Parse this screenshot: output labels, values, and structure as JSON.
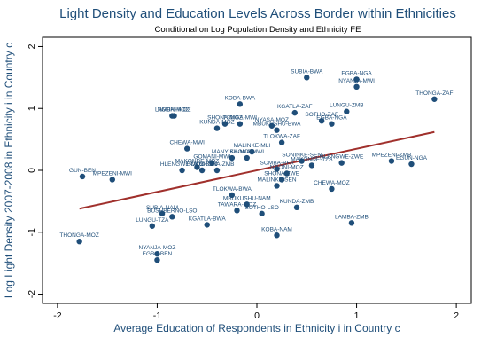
{
  "chart_data": {
    "type": "scatter",
    "title": "Light Density and Education Levels Across Border within Ethnicities",
    "subtitle": "Conditional on Log Population Density and Ethnicity FE",
    "xlabel": "Average Education of Respondents in Ethnicity i in Country c",
    "ylabel": "Log Light Density 2007-2008 in Ethnicity i in Country c",
    "xlim": [
      -2.15,
      2.15
    ],
    "ylim": [
      -2.15,
      2.15
    ],
    "xticks": [
      -2,
      -1,
      0,
      1,
      2
    ],
    "yticks": [
      -2,
      -1,
      0,
      1,
      2
    ],
    "grid": false,
    "colors": {
      "points": "#1f4e79",
      "fit_line": "#a0302c",
      "title": "#1f4e79"
    },
    "fit_line": {
      "x": [
        -1.78,
        1.78
      ],
      "y": [
        -0.62,
        0.62
      ]
    },
    "points": [
      {
        "x": 0.5,
        "y": 1.5,
        "label": "SUBIA-BWA"
      },
      {
        "x": 1.0,
        "y": 1.47,
        "label": "EGBA-NGA"
      },
      {
        "x": 1.0,
        "y": 1.35,
        "label": "NYANJA-MWI"
      },
      {
        "x": 1.78,
        "y": 1.15,
        "label": "THONGA-ZAF"
      },
      {
        "x": -0.17,
        "y": 1.07,
        "label": "KOBA-BWA"
      },
      {
        "x": -0.85,
        "y": 0.88,
        "label": "LAMBA-MOZ"
      },
      {
        "x": -0.83,
        "y": 0.88,
        "label": "NGONI-MOZ"
      },
      {
        "x": 0.9,
        "y": 0.95,
        "label": "LUNGU-ZMB"
      },
      {
        "x": 0.38,
        "y": 0.93,
        "label": "KGATLA-ZAF"
      },
      {
        "x": 0.65,
        "y": 0.8,
        "label": "SOTHO-ZAF"
      },
      {
        "x": 0.75,
        "y": 0.75,
        "label": "EGBA-NGA"
      },
      {
        "x": -0.32,
        "y": 0.75,
        "label": "SHONA-MOZ"
      },
      {
        "x": -0.17,
        "y": 0.75,
        "label": "TONGA-MWI"
      },
      {
        "x": 0.15,
        "y": 0.72,
        "label": "NYASA-MOZ"
      },
      {
        "x": -0.4,
        "y": 0.68,
        "label": "KUNDA-MOZ"
      },
      {
        "x": 0.2,
        "y": 0.65,
        "label": "MBUKUSHU-BWA"
      },
      {
        "x": 0.25,
        "y": 0.45,
        "label": "TLOKWA-ZAF"
      },
      {
        "x": -0.7,
        "y": 0.35,
        "label": "CHEWA-MWI"
      },
      {
        "x": -0.05,
        "y": 0.3,
        "label": "MALINKE-MLI"
      },
      {
        "x": -0.25,
        "y": 0.2,
        "label": "MANYIKA-MOZ"
      },
      {
        "x": -0.1,
        "y": 0.2,
        "label": "SHONA-MWI"
      },
      {
        "x": -0.45,
        "y": 0.12,
        "label": "GOMANI-MWI"
      },
      {
        "x": -0.6,
        "y": 0.05,
        "label": "MAKONDE-MOZ"
      },
      {
        "x": -0.75,
        "y": 0.0,
        "label": "HLENGWE-MOZ"
      },
      {
        "x": -0.55,
        "y": 0.0,
        "label": "BOKO-BEN"
      },
      {
        "x": -0.4,
        "y": 0.0,
        "label": "SHONA-ZMB"
      },
      {
        "x": 0.45,
        "y": 0.15,
        "label": "SONINKE-SEN"
      },
      {
        "x": 0.55,
        "y": 0.08,
        "label": "MAKONDE-TZA"
      },
      {
        "x": 0.85,
        "y": 0.12,
        "label": "HLENGWE-ZWE"
      },
      {
        "x": 1.35,
        "y": 0.15,
        "label": "MPEZENI-ZMB"
      },
      {
        "x": 1.55,
        "y": 0.1,
        "label": "EGUN-NGA"
      },
      {
        "x": 0.2,
        "y": 0.02,
        "label": "SOMBA-BFA"
      },
      {
        "x": 0.3,
        "y": -0.05,
        "label": "NGONI-MOZ"
      },
      {
        "x": -1.75,
        "y": -0.1,
        "label": "GUN-BEN"
      },
      {
        "x": -1.45,
        "y": -0.15,
        "label": "MPEZENI-MWI"
      },
      {
        "x": 0.25,
        "y": -0.15,
        "label": "SHONA-ZWE"
      },
      {
        "x": 0.2,
        "y": -0.25,
        "label": "MALINKE-SEN"
      },
      {
        "x": -0.25,
        "y": -0.4,
        "label": "TLOKWA-BWA"
      },
      {
        "x": 0.75,
        "y": -0.3,
        "label": "CHEWA-MOZ"
      },
      {
        "x": -0.1,
        "y": -0.55,
        "label": "MBUKUSHU-NAM"
      },
      {
        "x": 0.4,
        "y": -0.6,
        "label": "KUNDA-ZMB"
      },
      {
        "x": -0.2,
        "y": -0.65,
        "label": "TAWARA-MOZ"
      },
      {
        "x": 0.05,
        "y": -0.7,
        "label": "SOTHO-LSO"
      },
      {
        "x": -0.95,
        "y": -0.7,
        "label": "SUBIA-NAM"
      },
      {
        "x": -0.85,
        "y": -0.75,
        "label": "BUSHBERNO-LSO"
      },
      {
        "x": 0.95,
        "y": -0.85,
        "label": "LAMBA-ZMB"
      },
      {
        "x": -1.05,
        "y": -0.9,
        "label": "LUNGU-TZA"
      },
      {
        "x": -0.5,
        "y": -0.88,
        "label": "KGATLA-BWA"
      },
      {
        "x": 0.2,
        "y": -1.05,
        "label": "KOBA-NAM"
      },
      {
        "x": -1.78,
        "y": -1.15,
        "label": "THONGA-MOZ"
      },
      {
        "x": -1.0,
        "y": -1.35,
        "label": "NYANJA-MOZ"
      },
      {
        "x": -1.0,
        "y": -1.45,
        "label": "EGBA-BEN"
      }
    ]
  }
}
